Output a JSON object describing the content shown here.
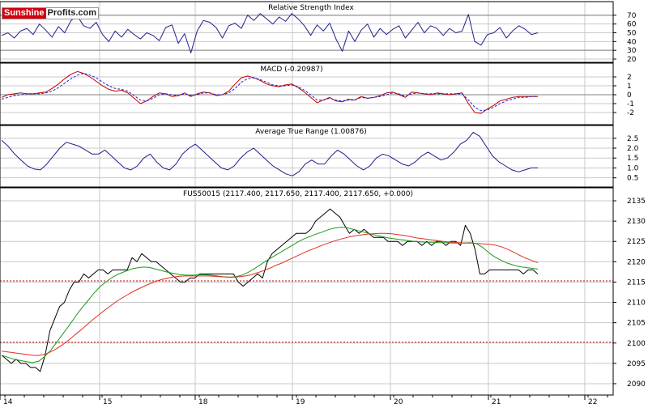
{
  "brand": {
    "part1": "Sunshine",
    "part2": "Profits.com"
  },
  "colors": {
    "line_blue": "#1f1f8f",
    "macd_red": "#c00000",
    "macd_signal": "#2020d0",
    "ma_green": "#1a9a1a",
    "ma_red": "#e03020",
    "ref_red": "#c00000",
    "grid": "#c8c8c8",
    "price": "#000000"
  },
  "chart_data": [
    {
      "type": "line",
      "title": "Relative Strength Index",
      "ylim": [
        20,
        80
      ],
      "yticks": [
        "70",
        "60",
        "50",
        "40",
        "30",
        "20"
      ],
      "ref_lines": [
        70,
        30
      ],
      "series": [
        {
          "values": [
            47,
            50,
            44,
            52,
            55,
            48,
            60,
            53,
            45,
            57,
            50,
            64,
            69,
            58,
            55,
            62,
            48,
            40,
            52,
            45,
            54,
            48,
            43,
            50,
            47,
            41,
            56,
            59,
            38,
            49,
            27,
            52,
            64,
            62,
            56,
            44,
            58,
            61,
            55,
            70,
            64,
            72,
            66,
            60,
            68,
            63,
            72,
            66,
            58,
            47,
            59,
            52,
            61,
            43,
            29,
            52,
            40,
            53,
            60,
            45,
            55,
            48,
            54,
            58,
            44,
            53,
            62,
            50,
            58,
            55,
            47,
            55,
            50,
            52,
            71,
            40,
            36,
            48,
            50,
            56,
            44,
            52,
            58,
            54,
            48,
            50
          ]
        }
      ]
    },
    {
      "type": "line",
      "title": "MACD (-0.20987)",
      "ylim": [
        -3,
        3
      ],
      "yticks": [
        "2",
        "1",
        "0",
        "-1",
        "-2"
      ],
      "ref_lines": [
        0
      ],
      "series": [
        {
          "values": [
            -0.3,
            0.0,
            0.1,
            0.2,
            0.1,
            0.1,
            0.2,
            0.3,
            0.7,
            1.2,
            1.8,
            2.3,
            2.6,
            2.4,
            2.0,
            1.5,
            1.0,
            0.6,
            0.4,
            0.5,
            0.2,
            -0.4,
            -1.0,
            -0.7,
            -0.2,
            0.2,
            0.1,
            -0.2,
            -0.1,
            0.2,
            -0.2,
            0.1,
            0.3,
            0.2,
            -0.1,
            0.0,
            0.4,
            1.2,
            1.9,
            2.1,
            1.9,
            1.6,
            1.2,
            1.0,
            0.9,
            1.1,
            1.2,
            0.8,
            0.3,
            -0.3,
            -0.9,
            -0.6,
            -0.3,
            -0.7,
            -0.8,
            -0.5,
            -0.6,
            -0.2,
            -0.4,
            -0.3,
            -0.1,
            0.2,
            0.3,
            0.0,
            -0.3,
            0.3,
            0.2,
            0.1,
            0.0,
            0.2,
            0.1,
            0.0,
            0.1,
            0.2,
            -1.0,
            -2.0,
            -2.1,
            -1.6,
            -1.2,
            -0.7,
            -0.5,
            -0.3,
            -0.2,
            -0.2,
            -0.2,
            -0.2
          ]
        },
        {
          "values": [
            -0.5,
            -0.3,
            -0.1,
            0.0,
            0.1,
            0.1,
            0.1,
            0.2,
            0.4,
            0.8,
            1.3,
            1.8,
            2.2,
            2.4,
            2.2,
            1.9,
            1.4,
            1.0,
            0.7,
            0.6,
            0.4,
            -0.1,
            -0.6,
            -0.7,
            -0.4,
            0.0,
            0.1,
            0.0,
            -0.1,
            0.1,
            -0.1,
            0.0,
            0.2,
            0.2,
            0.0,
            0.0,
            0.2,
            0.7,
            1.4,
            1.8,
            1.9,
            1.7,
            1.4,
            1.1,
            1.0,
            1.0,
            1.1,
            0.9,
            0.5,
            0.0,
            -0.6,
            -0.6,
            -0.4,
            -0.6,
            -0.7,
            -0.6,
            -0.6,
            -0.3,
            -0.4,
            -0.3,
            -0.2,
            0.0,
            0.2,
            0.1,
            -0.2,
            0.1,
            0.2,
            0.1,
            0.1,
            0.1,
            0.1,
            0.1,
            0.1,
            0.1,
            -0.6,
            -1.4,
            -1.8,
            -1.7,
            -1.4,
            -1.0,
            -0.7,
            -0.5,
            -0.3,
            -0.3,
            -0.2,
            -0.2
          ]
        }
      ]
    },
    {
      "type": "line",
      "title": "Average True Range (1.00876)",
      "ylim": [
        0.2,
        2.9
      ],
      "yticks": [
        "2.5",
        "2.0",
        "1.5",
        "1.0",
        "0.5"
      ],
      "series": [
        {
          "values": [
            2.4,
            2.1,
            1.7,
            1.4,
            1.1,
            0.95,
            0.9,
            1.2,
            1.6,
            2.0,
            2.3,
            2.2,
            2.1,
            1.9,
            1.7,
            1.7,
            1.9,
            1.6,
            1.3,
            1.0,
            0.9,
            1.1,
            1.5,
            1.7,
            1.3,
            1.0,
            0.9,
            1.2,
            1.7,
            2.0,
            2.2,
            1.9,
            1.6,
            1.3,
            1.0,
            0.9,
            1.1,
            1.5,
            1.8,
            2.0,
            1.7,
            1.4,
            1.1,
            0.9,
            0.7,
            0.6,
            0.8,
            1.2,
            1.4,
            1.2,
            1.2,
            1.6,
            1.9,
            1.7,
            1.4,
            1.1,
            0.9,
            1.1,
            1.5,
            1.7,
            1.6,
            1.4,
            1.2,
            1.1,
            1.3,
            1.6,
            1.8,
            1.6,
            1.4,
            1.5,
            1.8,
            2.2,
            2.4,
            2.8,
            2.6,
            2.1,
            1.6,
            1.3,
            1.1,
            0.9,
            0.8,
            0.9,
            1.0,
            1.0
          ]
        }
      ]
    },
    {
      "type": "line",
      "title": "FUS50015 (2117.400, 2117.650, 2117.400, 2117.650, +0.000)",
      "ylim": [
        2088,
        2137
      ],
      "yticks": [
        "2135",
        "2130",
        "2125",
        "2120",
        "2115",
        "2110",
        "2105",
        "2100",
        "2095",
        "2090"
      ],
      "ref_lines": [
        2115.3,
        2100.2
      ],
      "xtick_labels": [
        "14",
        "15",
        "18",
        "19",
        "20",
        "21",
        "22"
      ],
      "xtick_index": [
        0,
        20,
        39,
        59,
        79,
        99,
        119
      ],
      "x_count": 132,
      "series": [
        {
          "name": "price",
          "values": [
            2097,
            2096,
            2095,
            2096,
            2095,
            2095,
            2094,
            2094,
            2093,
            2097,
            2103,
            2106,
            2109,
            2110,
            2113,
            2115,
            2115,
            2117,
            2116,
            2117,
            2118,
            2118,
            2117,
            2118,
            2118,
            2118,
            2118,
            2121,
            2120,
            2122,
            2121,
            2120,
            2120,
            2119,
            2118,
            2117,
            2116,
            2115,
            2115,
            2116,
            2116,
            2117,
            2117,
            2117,
            2117,
            2117,
            2117,
            2117,
            2117,
            2115,
            2114,
            2115,
            2116,
            2117,
            2116,
            2120,
            2122,
            2123,
            2124,
            2125,
            2126,
            2127,
            2127,
            2127,
            2128,
            2130,
            2131,
            2132,
            2133,
            2132,
            2131,
            2129,
            2127,
            2128,
            2127,
            2128,
            2127,
            2126,
            2126,
            2126,
            2125,
            2125,
            2125,
            2124,
            2125,
            2125,
            2125,
            2124,
            2125,
            2124,
            2125,
            2125,
            2124,
            2125,
            2125,
            2124,
            2129,
            2127,
            2123,
            2117,
            2117,
            2118,
            2118,
            2118,
            2118,
            2118,
            2118,
            2118,
            2117,
            2118,
            2118,
            2117
          ]
        },
        {
          "name": "ma-green",
          "values": [
            2097,
            2096.5,
            2096,
            2095.7,
            2095.4,
            2095.2,
            2095.5,
            2096.7,
            2098.3,
            2100.3,
            2102.4,
            2104.4,
            2106.6,
            2108.6,
            2110.4,
            2112.3,
            2113.9,
            2115.1,
            2116.2,
            2117.0,
            2117.6,
            2118.2,
            2118.5,
            2118.7,
            2118.6,
            2118.2,
            2117.8,
            2117.4,
            2117.1,
            2116.8,
            2116.7,
            2116.7,
            2116.8,
            2116.8,
            2116.7,
            2116.5,
            2116.3,
            2116.2,
            2116.3,
            2116.7,
            2117.4,
            2118.3,
            2119.3,
            2120.3,
            2121.2,
            2122.1,
            2123.0,
            2123.9,
            2124.8,
            2125.6,
            2126.2,
            2126.8,
            2127.3,
            2127.9,
            2128.3,
            2128.5,
            2128.4,
            2128.0,
            2127.6,
            2127.2,
            2126.8,
            2126.4,
            2126.1,
            2125.8,
            2125.6,
            2125.4,
            2125.2,
            2125.0,
            2124.9,
            2124.8,
            2124.8,
            2124.7,
            2124.7,
            2124.6,
            2124.6,
            2124.6,
            2124.7,
            2124.5,
            2123.6,
            2122.3,
            2121.2,
            2120.4,
            2119.7,
            2119.2,
            2118.8,
            2118.6,
            2118.4,
            2118.2
          ]
        },
        {
          "name": "ma-red",
          "values": [
            2098,
            2097.8,
            2097.6,
            2097.4,
            2097.2,
            2097.0,
            2096.9,
            2097.2,
            2097.8,
            2098.6,
            2099.6,
            2100.7,
            2102.0,
            2103.2,
            2104.5,
            2105.8,
            2107.0,
            2108.2,
            2109.3,
            2110.4,
            2111.3,
            2112.2,
            2113.0,
            2113.7,
            2114.4,
            2115.0,
            2115.5,
            2115.9,
            2116.2,
            2116.4,
            2116.5,
            2116.5,
            2116.5,
            2116.5,
            2116.5,
            2116.4,
            2116.3,
            2116.2,
            2116.2,
            2116.3,
            2116.5,
            2116.8,
            2117.3,
            2117.8,
            2118.4,
            2119.1,
            2119.7,
            2120.4,
            2121.1,
            2121.8,
            2122.5,
            2123.1,
            2123.7,
            2124.3,
            2124.8,
            2125.3,
            2125.7,
            2126.1,
            2126.4,
            2126.6,
            2126.8,
            2126.9,
            2127.0,
            2127.0,
            2126.9,
            2126.7,
            2126.5,
            2126.2,
            2125.9,
            2125.7,
            2125.5,
            2125.3,
            2125.1,
            2124.9,
            2124.8,
            2124.7,
            2124.6,
            2124.6,
            2124.5,
            2124.4,
            2124.3,
            2124.1,
            2123.7,
            2123.1,
            2122.4,
            2121.6,
            2120.9,
            2120.3,
            2119.8
          ]
        }
      ]
    }
  ]
}
